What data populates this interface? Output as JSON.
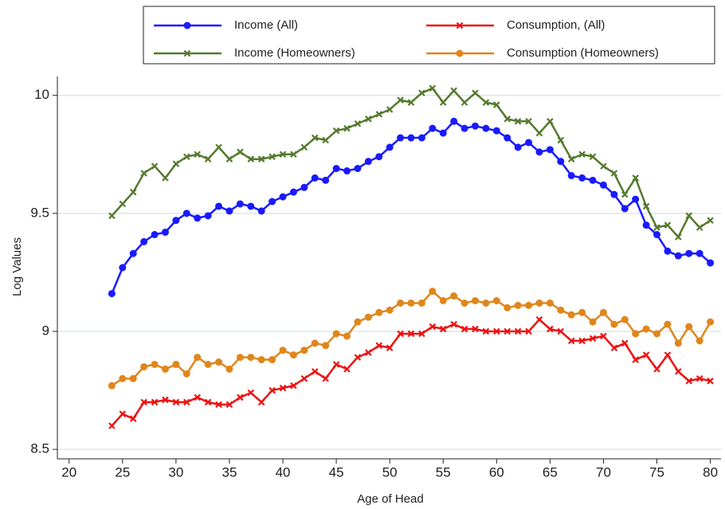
{
  "chart_data": {
    "type": "line",
    "x_label": "Age of Head",
    "y_label": "Log Values",
    "x": [
      24,
      25,
      26,
      27,
      28,
      29,
      30,
      31,
      32,
      33,
      34,
      35,
      36,
      37,
      38,
      39,
      40,
      41,
      42,
      43,
      44,
      45,
      46,
      47,
      48,
      49,
      50,
      51,
      52,
      53,
      54,
      55,
      56,
      57,
      58,
      59,
      60,
      61,
      62,
      63,
      64,
      65,
      66,
      67,
      68,
      69,
      70,
      71,
      72,
      73,
      74,
      75,
      76,
      77,
      78,
      79,
      80
    ],
    "xlim": [
      18.9,
      81
    ],
    "xticks": [
      20,
      25,
      30,
      35,
      40,
      45,
      50,
      55,
      60,
      65,
      70,
      75,
      80
    ],
    "ylim": [
      8.46,
      10.08
    ],
    "yticks": [
      8.5,
      9,
      9.5,
      10
    ],
    "grid": true,
    "legend": "top",
    "series": [
      {
        "name": "Income (All)",
        "color": "#1a1aff",
        "marker": "circle",
        "values": [
          9.16,
          9.27,
          9.33,
          9.38,
          9.41,
          9.42,
          9.47,
          9.5,
          9.48,
          9.49,
          9.53,
          9.51,
          9.54,
          9.53,
          9.51,
          9.55,
          9.57,
          9.59,
          9.61,
          9.65,
          9.64,
          9.69,
          9.68,
          9.69,
          9.72,
          9.74,
          9.78,
          9.82,
          9.82,
          9.82,
          9.86,
          9.84,
          9.89,
          9.86,
          9.87,
          9.86,
          9.85,
          9.82,
          9.78,
          9.8,
          9.76,
          9.77,
          9.72,
          9.66,
          9.65,
          9.64,
          9.62,
          9.58,
          9.52,
          9.56,
          9.45,
          9.41,
          9.34,
          9.32,
          9.33,
          9.33,
          9.29
        ]
      },
      {
        "name": "Consumption, (All)",
        "color": "#ee1111",
        "marker": "x",
        "values": [
          8.6,
          8.65,
          8.63,
          8.7,
          8.7,
          8.71,
          8.7,
          8.7,
          8.72,
          8.7,
          8.69,
          8.69,
          8.72,
          8.74,
          8.7,
          8.75,
          8.76,
          8.77,
          8.8,
          8.83,
          8.8,
          8.86,
          8.84,
          8.89,
          8.91,
          8.94,
          8.93,
          8.99,
          8.99,
          8.99,
          9.02,
          9.01,
          9.03,
          9.01,
          9.01,
          9.0,
          9.0,
          9.0,
          9.0,
          9.0,
          9.05,
          9.01,
          9.0,
          8.96,
          8.96,
          8.97,
          8.98,
          8.93,
          8.95,
          8.88,
          8.9,
          8.84,
          8.9,
          8.83,
          8.79,
          8.8,
          8.79
        ]
      },
      {
        "name": "Income (Homeowners)",
        "color": "#557a2e",
        "marker": "x",
        "values": [
          9.49,
          9.54,
          9.59,
          9.67,
          9.7,
          9.65,
          9.71,
          9.74,
          9.75,
          9.73,
          9.78,
          9.73,
          9.76,
          9.73,
          9.73,
          9.74,
          9.75,
          9.75,
          9.78,
          9.82,
          9.81,
          9.85,
          9.86,
          9.88,
          9.9,
          9.92,
          9.94,
          9.98,
          9.97,
          10.01,
          10.03,
          9.97,
          10.02,
          9.97,
          10.01,
          9.97,
          9.96,
          9.9,
          9.89,
          9.89,
          9.84,
          9.89,
          9.81,
          9.73,
          9.75,
          9.74,
          9.7,
          9.67,
          9.58,
          9.65,
          9.53,
          9.44,
          9.45,
          9.4,
          9.49,
          9.44,
          9.47
        ]
      },
      {
        "name": "Consumption (Homeowners)",
        "color": "#e0861a",
        "marker": "circle",
        "values": [
          8.77,
          8.8,
          8.8,
          8.85,
          8.86,
          8.84,
          8.86,
          8.82,
          8.89,
          8.86,
          8.87,
          8.84,
          8.89,
          8.89,
          8.88,
          8.88,
          8.92,
          8.9,
          8.92,
          8.95,
          8.94,
          8.99,
          8.98,
          9.04,
          9.06,
          9.08,
          9.09,
          9.12,
          9.12,
          9.12,
          9.17,
          9.13,
          9.15,
          9.12,
          9.13,
          9.12,
          9.13,
          9.1,
          9.11,
          9.11,
          9.12,
          9.12,
          9.09,
          9.07,
          9.08,
          9.04,
          9.08,
          9.03,
          9.05,
          8.99,
          9.01,
          8.99,
          9.03,
          8.95,
          9.02,
          8.96,
          9.04
        ]
      }
    ]
  }
}
